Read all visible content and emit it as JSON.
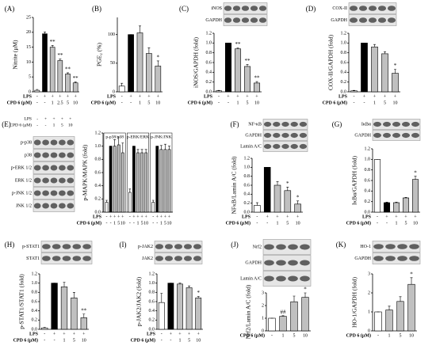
{
  "chart_data": [
    {
      "type": "bar",
      "panel": "(A)",
      "ylabel": "Nitrite (μM)",
      "ylim": [
        0,
        25
      ],
      "yticks": [
        0,
        5,
        10,
        15,
        20,
        25
      ],
      "row_labels": [
        "LPS",
        "CPD 6 (μM)"
      ],
      "lps": [
        "-",
        "+",
        "+",
        "+",
        "+",
        "+"
      ],
      "categories": [
        "-",
        "-",
        "1",
        "2.5",
        "5",
        "10"
      ],
      "values": [
        0.5,
        19.5,
        15,
        10.5,
        6,
        3
      ],
      "errors": [
        0.3,
        0.6,
        0.6,
        0.5,
        0.4,
        0.3
      ],
      "colors": [
        "#ffffff",
        "#000000",
        "#c0c0c0",
        "#c0c0c0",
        "#c0c0c0",
        "#c0c0c0"
      ],
      "annotations": [
        null,
        null,
        "**",
        "**",
        "**",
        "**"
      ]
    },
    {
      "type": "bar",
      "panel": "(B)",
      "ylabel": "PGE₂ (%)",
      "ylim": [
        0,
        130
      ],
      "yticks": [
        0,
        50,
        100
      ],
      "row_labels": [
        "LPS",
        "CPD 6 (μM)"
      ],
      "lps": [
        "-",
        "+",
        "+",
        "+",
        "+"
      ],
      "categories": [
        "-",
        "-",
        "1",
        "5",
        "10"
      ],
      "values": [
        10,
        100,
        103,
        67,
        45
      ],
      "errors": [
        5,
        0,
        12,
        10,
        9
      ],
      "colors": [
        "#ffffff",
        "#000000",
        "#c0c0c0",
        "#c0c0c0",
        "#c0c0c0"
      ],
      "annotations": [
        null,
        null,
        null,
        null,
        "*"
      ]
    },
    {
      "type": "bar",
      "panel": "(C)",
      "blot_labels": [
        "iNOS",
        "GAPDH"
      ],
      "ylabel": "iNOS/GAPDH (fold)",
      "ylim": [
        0,
        1.2
      ],
      "yticks": [
        {
          "value": 0,
          "label": "0.0"
        },
        0.2,
        0.4,
        0.6,
        0.8,
        {
          "value": 1,
          "label": "1.0"
        },
        1.2
      ],
      "row_labels": [
        "LPS",
        "CPD 6 (μM)"
      ],
      "lps": [
        "-",
        "+",
        "+",
        "+",
        "+"
      ],
      "categories": [
        "-",
        "-",
        "1",
        "5",
        "10"
      ],
      "values": [
        0.02,
        1.0,
        0.88,
        0.52,
        0.18
      ],
      "errors": [
        0.01,
        0,
        0.02,
        0.04,
        0.03
      ],
      "colors": [
        "#ffffff",
        "#000000",
        "#c0c0c0",
        "#c0c0c0",
        "#c0c0c0"
      ],
      "annotations": [
        null,
        null,
        "**",
        "**",
        "**"
      ]
    },
    {
      "type": "bar",
      "panel": "(D)",
      "blot_labels": [
        "COX-II",
        "GAPDH"
      ],
      "ylabel": "COX-II/GAPDH (fold)",
      "ylim": [
        0,
        1.2
      ],
      "yticks": [
        {
          "value": 0,
          "label": "0.0"
        },
        0.2,
        0.4,
        0.6,
        0.8,
        {
          "value": 1,
          "label": "1.0"
        },
        1.2
      ],
      "row_labels": [
        "LPS",
        "CPD 6 (μM)"
      ],
      "lps": [
        "-",
        "+",
        "+",
        "+",
        "+"
      ],
      "categories": [
        "-",
        "-",
        "1",
        "5",
        "10"
      ],
      "values": [
        0.02,
        1.0,
        0.92,
        0.78,
        0.38
      ],
      "errors": [
        0.01,
        0,
        0.05,
        0.04,
        0.08
      ],
      "colors": [
        "#ffffff",
        "#000000",
        "#c0c0c0",
        "#c0c0c0",
        "#c0c0c0"
      ],
      "annotations": [
        null,
        null,
        null,
        null,
        "*"
      ]
    },
    {
      "type": "bar",
      "panel": "(E)",
      "blot_header_labels": [
        "LPS",
        "CPD 6 (μM)"
      ],
      "blot_header_lps": [
        "-",
        "+",
        "+",
        "+",
        "+"
      ],
      "blot_header_cpd": [
        "-",
        "-",
        "1",
        "5",
        "10"
      ],
      "blot_labels": [
        "p-p38",
        "p38",
        "p-ERK 1/2",
        "ERK 1/2",
        "p-JNK 1/2",
        "JNK 1/2"
      ],
      "ylabel": "p-MAPK/MAPK (fold)",
      "ylim": [
        0,
        1.2
      ],
      "yticks": [
        {
          "value": 0,
          "label": "0.0"
        },
        0.2,
        0.4,
        0.6,
        0.8,
        {
          "value": 1,
          "label": "1.0"
        },
        1.2
      ],
      "row_labels": [
        "LPS",
        "CPD 6 (μM)"
      ],
      "lps": [
        "-",
        "+",
        "+",
        "+",
        "+"
      ],
      "categories": [
        "-",
        "-",
        "1",
        "5",
        "10"
      ],
      "colors": [
        "#ffffff",
        "#000000",
        "#c0c0c0",
        "#c0c0c0",
        "#c0c0c0"
      ],
      "series": [
        {
          "name": "p-p38/p38",
          "values": [
            0.15,
            1.0,
            1.0,
            1.02,
            0.9
          ],
          "errors": [
            0.03,
            0,
            0.1,
            0.12,
            0.15
          ]
        },
        {
          "name": "p-ERK/ERK",
          "values": [
            0.3,
            1.0,
            0.9,
            0.9,
            0.9
          ],
          "errors": [
            0.05,
            0,
            0.05,
            0.05,
            0.05
          ]
        },
        {
          "name": "p-JNK/JNK",
          "values": [
            0.15,
            1.0,
            0.95,
            0.95,
            0.95
          ],
          "errors": [
            0.03,
            0,
            0.06,
            0.08,
            0.05
          ]
        }
      ]
    },
    {
      "type": "bar",
      "panel": "(F)",
      "blot_labels": [
        "NF-κB",
        "GAPDH",
        "Lamin A/C"
      ],
      "ylabel": "NFκB/Lamin A/C (fold)",
      "ylim": [
        0,
        1.2
      ],
      "yticks": [
        {
          "value": 0,
          "label": "0.0"
        },
        0.2,
        0.4,
        0.6,
        0.8,
        {
          "value": 1,
          "label": "1.0"
        },
        1.2
      ],
      "row_labels": [
        "LPS",
        "CPD 6 (μM)"
      ],
      "lps": [
        "-",
        "+",
        "+",
        "+",
        "+"
      ],
      "categories": [
        "-",
        "-",
        "1",
        "5",
        "10"
      ],
      "values": [
        0.15,
        1.0,
        0.6,
        0.48,
        0.18
      ],
      "errors": [
        0.06,
        0,
        0.08,
        0.08,
        0.07
      ],
      "colors": [
        "#ffffff",
        "#000000",
        "#c0c0c0",
        "#c0c0c0",
        "#c0c0c0"
      ],
      "annotations": [
        null,
        null,
        null,
        "*",
        "*"
      ]
    },
    {
      "type": "bar",
      "panel": "(G)",
      "blot_labels": [
        "IκBα",
        "GAPDH"
      ],
      "ylabel": "IκBα/GAPDH (fold)",
      "ylim": [
        0,
        1.2
      ],
      "yticks": [
        {
          "value": 0,
          "label": "0.0"
        },
        0.2,
        0.4,
        0.6,
        0.8,
        {
          "value": 1,
          "label": "1.0"
        },
        1.2
      ],
      "row_labels": [
        "LPS",
        "CPD 6 (μM)"
      ],
      "lps": [
        "-",
        "+",
        "+",
        "+",
        "+"
      ],
      "categories": [
        "-",
        "-",
        "1",
        "5",
        "10"
      ],
      "values": [
        1.0,
        0.18,
        0.18,
        0.27,
        0.62
      ],
      "errors": [
        0,
        0.01,
        0.01,
        0.01,
        0.06
      ],
      "colors": [
        "#ffffff",
        "#000000",
        "#c0c0c0",
        "#c0c0c0",
        "#c0c0c0"
      ],
      "annotations": [
        null,
        null,
        null,
        null,
        "*"
      ]
    },
    {
      "type": "bar",
      "panel": "(H)",
      "blot_labels": [
        "p-STAT1",
        "STAT1"
      ],
      "ylabel": "p-STAT1/STAT1 (fold)",
      "ylim": [
        0,
        1.2
      ],
      "yticks": [
        {
          "value": 0,
          "label": "0.0"
        },
        0.2,
        0.4,
        0.6,
        0.8,
        {
          "value": 1,
          "label": "1.0"
        },
        1.2
      ],
      "row_labels": [
        "LPS",
        "CPD 6 (μM)"
      ],
      "lps": [
        "-",
        "+",
        "+",
        "+",
        "+"
      ],
      "categories": [
        "-",
        "-",
        "1",
        "5",
        "10"
      ],
      "values": [
        0.03,
        1.0,
        0.92,
        0.68,
        0.25
      ],
      "errors": [
        0.01,
        0,
        0.1,
        0.12,
        0.08
      ],
      "colors": [
        "#ffffff",
        "#000000",
        "#c0c0c0",
        "#c0c0c0",
        "#c0c0c0"
      ],
      "annotations": [
        null,
        null,
        null,
        null,
        "**"
      ]
    },
    {
      "type": "bar",
      "panel": "(I)",
      "blot_labels": [
        "p-JAK2",
        "JAK2"
      ],
      "ylabel": "p-JAK2/JAK2 (fold)",
      "ylim": [
        0,
        1.2
      ],
      "yticks": [
        {
          "value": 0,
          "label": "0.0"
        },
        0.2,
        0.4,
        0.6,
        0.8,
        {
          "value": 1,
          "label": "1.0"
        },
        1.2
      ],
      "row_labels": [
        "LPS",
        "CPD 6 (μM)"
      ],
      "lps": [
        "-",
        "+",
        "+",
        "+",
        "+"
      ],
      "categories": [
        "-",
        "-",
        "1",
        "5",
        "10"
      ],
      "values": [
        0.58,
        1.0,
        0.98,
        0.9,
        0.68
      ],
      "errors": [
        0.2,
        0,
        0.02,
        0.04,
        0.03
      ],
      "colors": [
        "#ffffff",
        "#000000",
        "#c0c0c0",
        "#c0c0c0",
        "#c0c0c0"
      ],
      "annotations": [
        null,
        null,
        null,
        null,
        "*"
      ]
    },
    {
      "type": "bar",
      "panel": "(J)",
      "blot_labels": [
        "Nrf2",
        "GAPDH",
        "Lamin A/C"
      ],
      "ylabel": "Nrf2/Lamin A/C (fold)",
      "ylim": [
        0,
        3
      ],
      "yticks": [
        0,
        1,
        2,
        3
      ],
      "row_labels": [
        "CPD 6 (μM)"
      ],
      "categories": [
        "-",
        "1",
        "5",
        "10"
      ],
      "values": [
        1.0,
        1.15,
        2.3,
        2.65
      ],
      "errors": [
        0,
        0.05,
        0.45,
        0.35
      ],
      "colors": [
        "#ffffff",
        "#c0c0c0",
        "#c0c0c0",
        "#c0c0c0"
      ],
      "annotations": [
        null,
        "##",
        null,
        "*"
      ]
    },
    {
      "type": "bar",
      "panel": "(K)",
      "blot_labels": [
        "HO-1",
        "GAPDH"
      ],
      "ylabel": "HO-1/GAPDH (fold)",
      "ylim": [
        0,
        3
      ],
      "yticks": [
        0,
        1,
        2,
        3
      ],
      "row_labels": [
        "CPD 6 (μM)"
      ],
      "categories": [
        "-",
        "1",
        "5",
        "10"
      ],
      "values": [
        1.0,
        1.1,
        1.55,
        2.45
      ],
      "errors": [
        0,
        0.2,
        0.25,
        0.35
      ],
      "colors": [
        "#ffffff",
        "#c0c0c0",
        "#c0c0c0",
        "#c0c0c0"
      ],
      "annotations": [
        null,
        null,
        null,
        "*"
      ]
    }
  ]
}
